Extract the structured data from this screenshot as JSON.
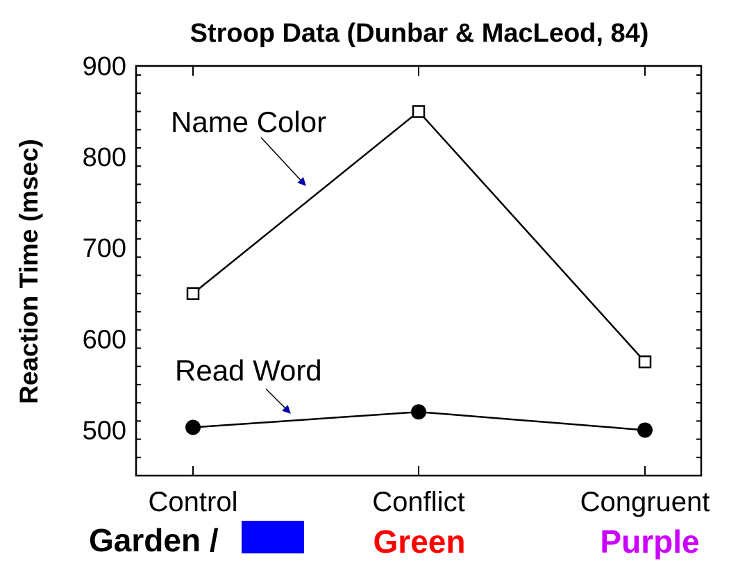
{
  "chart_data": {
    "type": "line",
    "title": "Stroop Data (Dunbar & MacLeod, 84)",
    "xlabel": "",
    "ylabel": "Reaction Time (msec)",
    "categories": [
      "Control",
      "Conflict",
      "Congruent"
    ],
    "yticks": [
      500,
      600,
      700,
      800,
      900
    ],
    "ylim": [
      450,
      900
    ],
    "grid": false,
    "legend": "none",
    "series": [
      {
        "values": [
          650,
          850,
          575
        ],
        "marker": "open-square"
      },
      {
        "values": [
          503,
          520,
          500
        ],
        "marker": "filled-circle"
      }
    ],
    "annotations": [
      {
        "text": "Name Color",
        "series_index": 0
      },
      {
        "text": "Read Word",
        "series_index": 1
      }
    ],
    "stimuli": [
      {
        "text": "Garden /",
        "color": "#000000",
        "swatch_color": "#0000ff"
      },
      {
        "text": "Green",
        "color": "#ff0000"
      },
      {
        "text": "Purple",
        "color": "#cc00ff"
      }
    ],
    "arrow_color": "#0000aa"
  }
}
